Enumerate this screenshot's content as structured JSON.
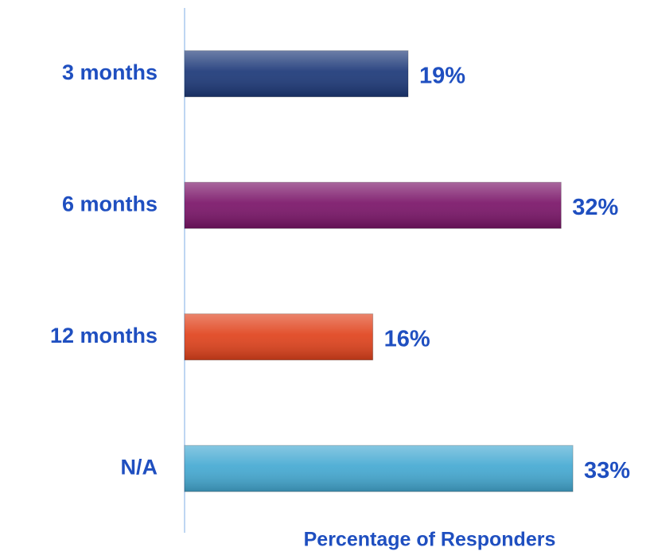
{
  "chart_data": {
    "type": "barh",
    "xlabel": "Percentage of Responders",
    "categories": [
      "3 months",
      "6 months",
      "12 months",
      "N/A"
    ],
    "values": [
      19,
      32,
      16,
      33
    ],
    "value_labels": [
      "19%",
      "32%",
      "16%",
      "33%"
    ],
    "colors": [
      "#1c3878",
      "#7a1468",
      "#e0421c",
      "#44a9d2"
    ],
    "xlim": [
      0,
      38
    ]
  }
}
